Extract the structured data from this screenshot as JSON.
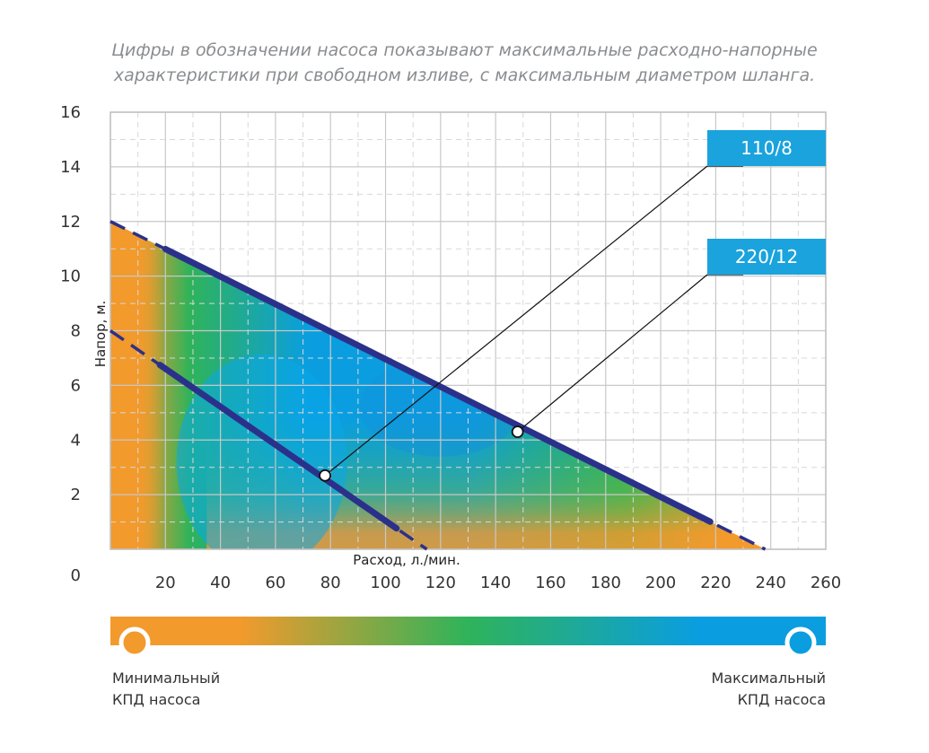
{
  "caption": {
    "line1": "Цифры в обозначении насоса показывают максимальные расходно-напорные",
    "line2": "характеристики при свободном изливе, с максимальным диаметром шланга."
  },
  "chart_data": {
    "type": "line",
    "xlabel": "Расход, л./мин.",
    "ylabel": "Напор, м.",
    "xlim": [
      0,
      260
    ],
    "ylim": [
      0,
      16
    ],
    "x_ticks": [
      20,
      40,
      60,
      80,
      100,
      120,
      140,
      160,
      180,
      200,
      220,
      240,
      260
    ],
    "y_ticks": [
      0,
      2,
      4,
      6,
      8,
      10,
      12,
      14,
      16
    ],
    "series": [
      {
        "name": "110/8",
        "points": [
          [
            0,
            8
          ],
          [
            115,
            0
          ]
        ],
        "solid_range": [
          18,
          104
        ],
        "marker": [
          78,
          2.7
        ]
      },
      {
        "name": "220/12",
        "points": [
          [
            0,
            12
          ],
          [
            238,
            0
          ]
        ],
        "solid_range": [
          20,
          218
        ],
        "marker": [
          148,
          4.3
        ]
      }
    ],
    "efficiency_colors": {
      "min": "#f39a2c",
      "mid": "#2fb35a",
      "max": "#0a9ee0"
    }
  },
  "legend": {
    "min_line1": "Минимальный",
    "min_line2": "КПД насоса",
    "max_line1": "Максимальный",
    "max_line2": "КПД насоса"
  },
  "colors": {
    "curve": "#2b318a",
    "label_bg": "#1aa3dd",
    "grid": "#c8c8c8",
    "border": "#c0c0c0"
  }
}
